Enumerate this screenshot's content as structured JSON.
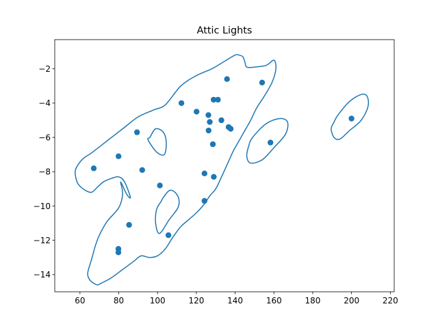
{
  "chart_data": {
    "type": "scatter",
    "title": "Attic Lights",
    "xlabel": "",
    "ylabel": "",
    "xlim": [
      47,
      222
    ],
    "ylim": [
      -15,
      -0.3
    ],
    "xticks": [
      60,
      80,
      100,
      120,
      140,
      160,
      180,
      200,
      220
    ],
    "yticks": [
      -2,
      -4,
      -6,
      -8,
      -10,
      -12,
      -14
    ],
    "grid": false,
    "color": "#1f77b4",
    "series": [
      {
        "kind": "points",
        "x": [
          67.1,
          79.9,
          89.4,
          92.1,
          85.3,
          79.8,
          79.8,
          101.2,
          105.6,
          112.3,
          120.1,
          124.2,
          124.2,
          126.2,
          126.3,
          126.9,
          128.5,
          128.9,
          129.0,
          131.1,
          132.9,
          135.8,
          136.6,
          137.7,
          153.9,
          158.2,
          200.0
        ],
        "y": [
          -7.8,
          -7.1,
          -5.7,
          -7.9,
          -11.1,
          -12.5,
          -12.7,
          -8.8,
          -11.7,
          -4.0,
          -4.5,
          -8.1,
          -9.7,
          -4.7,
          -5.6,
          -5.1,
          -6.4,
          -3.8,
          -8.3,
          -3.8,
          -5.0,
          -2.6,
          -5.4,
          -5.5,
          -2.8,
          -6.3,
          -4.9
        ]
      },
      {
        "kind": "contour-main",
        "x": [
          66.0,
          74.0,
          82.0,
          90.0,
          98.0,
          104.0,
          112.0,
          120.0,
          128.0,
          134.0,
          140.0,
          142.0,
          144.0,
          145.0,
          146.0,
          150.0,
          156.0,
          160.0,
          161.0,
          159.0,
          155.0,
          151.0,
          148.0,
          145.0,
          143.0,
          141.0,
          139.0,
          137.0,
          135.0,
          133.0,
          130.0,
          127.0,
          124.0,
          120.0,
          116.0,
          112.0,
          108.0,
          104.0,
          100.0,
          96.0,
          92.0,
          90.0,
          88.0,
          82.0,
          76.0,
          71.0,
          69.0,
          67.0,
          65.0,
          64.0,
          66.0,
          68.0,
          70.0,
          74.0,
          80.0,
          82.0,
          81.0,
          84.0,
          86.0,
          83.0,
          80.0,
          76.0,
          72.0,
          69.0,
          66.0,
          63.0,
          60.5,
          58.5,
          57.5,
          59.0,
          62.0,
          66.0
        ],
        "y": [
          -6.9,
          -6.2,
          -5.5,
          -4.8,
          -4.4,
          -4.1,
          -3.0,
          -2.4,
          -2.0,
          -1.6,
          -1.2,
          -1.2,
          -1.3,
          -1.6,
          -1.9,
          -1.9,
          -1.8,
          -1.5,
          -2.0,
          -2.8,
          -3.6,
          -4.3,
          -5.0,
          -5.6,
          -6.0,
          -6.4,
          -6.8,
          -7.3,
          -7.8,
          -8.3,
          -9.0,
          -9.4,
          -9.9,
          -10.4,
          -10.8,
          -11.2,
          -11.8,
          -12.5,
          -12.9,
          -13.0,
          -12.9,
          -13.0,
          -13.2,
          -13.7,
          -14.2,
          -14.5,
          -14.6,
          -14.5,
          -14.3,
          -13.9,
          -13.1,
          -12.3,
          -11.7,
          -10.9,
          -10.1,
          -9.3,
          -8.6,
          -9.3,
          -9.5,
          -8.6,
          -8.3,
          -8.4,
          -8.6,
          -8.9,
          -9.2,
          -9.1,
          -8.9,
          -8.6,
          -8.0,
          -7.6,
          -7.2,
          -6.9
        ]
      },
      {
        "kind": "contour-hole-upper",
        "x": [
          96.0,
          99.0,
          103.0,
          104.5,
          103.5,
          100.0,
          97.0,
          95.0,
          96.0
        ],
        "y": [
          -6.0,
          -5.5,
          -5.7,
          -6.3,
          -7.0,
          -6.9,
          -6.5,
          -6.1,
          -6.0
        ]
      },
      {
        "kind": "contour-hole-lower",
        "x": [
          103.0,
          106.0,
          109.0,
          111.0,
          110.5,
          106.0,
          101.0,
          99.0,
          99.5,
          102.0,
          103.0
        ],
        "y": [
          -9.5,
          -9.1,
          -9.2,
          -9.6,
          -10.1,
          -10.8,
          -11.6,
          -11.0,
          -10.2,
          -9.7,
          -9.5
        ]
      },
      {
        "kind": "contour-island-mid",
        "x": [
          149.0,
          156.0,
          163.0,
          167.0,
          166.0,
          160.0,
          154.0,
          148.0,
          146.0,
          147.0,
          149.0
        ],
        "y": [
          -6.0,
          -5.2,
          -4.9,
          -5.1,
          -5.8,
          -6.6,
          -7.3,
          -7.5,
          -7.1,
          -6.5,
          -6.0
        ]
      },
      {
        "kind": "contour-island-right",
        "x": [
          193.0,
          199.0,
          205.0,
          208.0,
          208.5,
          205.0,
          199.0,
          194.0,
          191.0,
          189.5,
          191.0,
          193.0
        ],
        "y": [
          -4.7,
          -3.9,
          -3.5,
          -3.6,
          -4.2,
          -5.0,
          -5.6,
          -6.1,
          -6.0,
          -5.5,
          -5.1,
          -4.7
        ]
      }
    ]
  }
}
